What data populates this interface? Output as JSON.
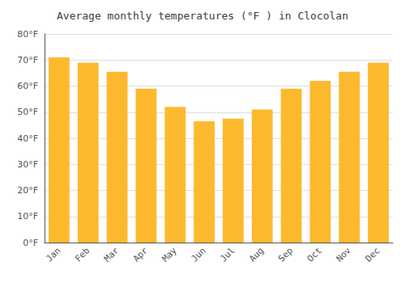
{
  "chart_data": {
    "type": "bar",
    "title": "Average monthly temperatures (°F ) in Clocolan",
    "categories": [
      "Jan",
      "Feb",
      "Mar",
      "Apr",
      "May",
      "Jun",
      "Jul",
      "Aug",
      "Sep",
      "Oct",
      "Nov",
      "Dec"
    ],
    "values": [
      71.0,
      69.0,
      65.5,
      59.0,
      52.0,
      46.5,
      47.5,
      51.0,
      59.0,
      62.0,
      65.5,
      69.0
    ],
    "color": "#FDB92E",
    "ylim": [
      0,
      80
    ],
    "yticks": [
      {
        "value": 0,
        "label": "0°F"
      },
      {
        "value": 10,
        "label": "10°F"
      },
      {
        "value": 20,
        "label": "20°F"
      },
      {
        "value": 30,
        "label": "30°F"
      },
      {
        "value": 40,
        "label": "40°F"
      },
      {
        "value": 50,
        "label": "50°F"
      },
      {
        "value": 60,
        "label": "60°F"
      },
      {
        "value": 70,
        "label": "70°F"
      },
      {
        "value": 80,
        "label": "80°F"
      }
    ],
    "grid": true
  }
}
